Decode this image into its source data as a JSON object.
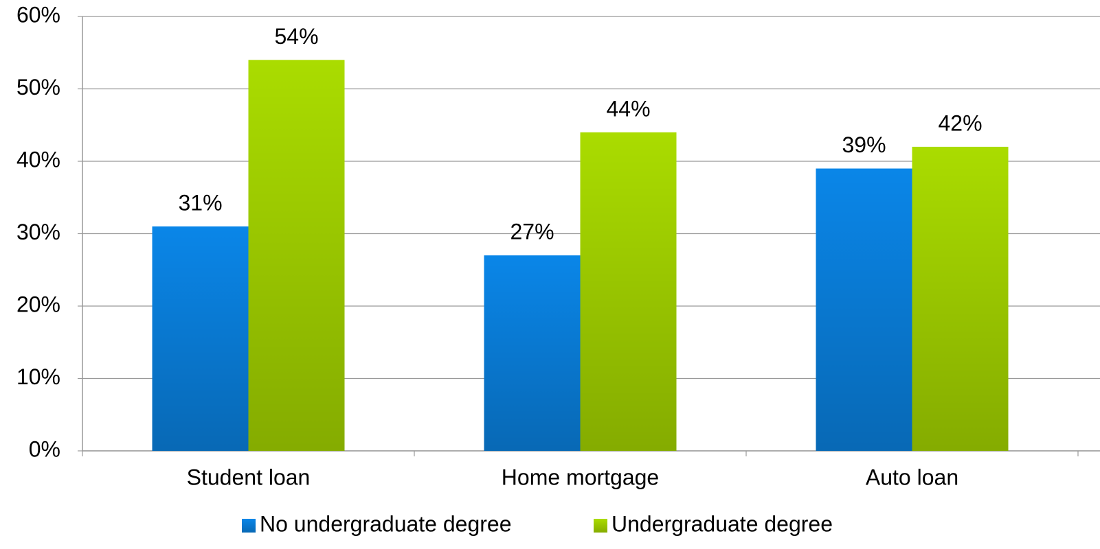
{
  "chart_data": {
    "type": "bar",
    "categories": [
      "Student loan",
      "Home mortgage",
      "Auto loan"
    ],
    "series": [
      {
        "name": "No undergraduate degree",
        "color": "#0a86e8",
        "values": [
          31,
          27,
          39
        ],
        "value_labels": [
          "31%",
          "27%",
          "39%"
        ]
      },
      {
        "name": "Undergraduate degree",
        "color": "#aadc00",
        "values": [
          54,
          44,
          42
        ],
        "value_labels": [
          "54%",
          "44%",
          "42%"
        ]
      }
    ],
    "ylim": [
      0,
      60
    ],
    "yticks": [
      {
        "value": 0,
        "label": "0%"
      },
      {
        "value": 10,
        "label": "10%"
      },
      {
        "value": 20,
        "label": "20%"
      },
      {
        "value": 30,
        "label": "30%"
      },
      {
        "value": 40,
        "label": "40%"
      },
      {
        "value": 50,
        "label": "50%"
      },
      {
        "value": 60,
        "label": "60%"
      }
    ],
    "grid": true,
    "legend": "bottom"
  }
}
